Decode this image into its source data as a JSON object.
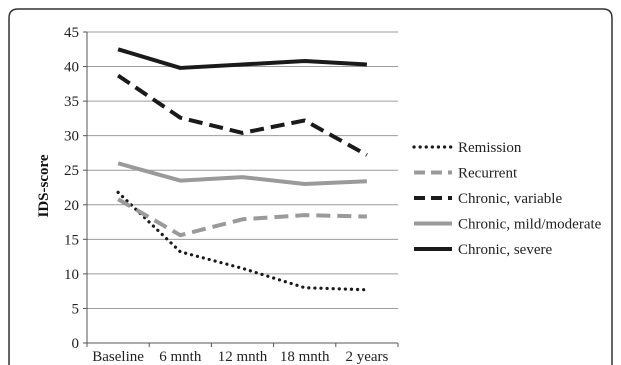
{
  "chart_data": {
    "type": "line",
    "title": "",
    "xlabel": "",
    "ylabel": "IDS-score",
    "categories": [
      "Baseline",
      "6 mnth",
      "12 mnth",
      "18 mnth",
      "2 years"
    ],
    "ylim": [
      0,
      45
    ],
    "yticks": [
      0,
      5,
      10,
      15,
      20,
      25,
      30,
      35,
      40,
      45
    ],
    "grid": "horizontal",
    "legend_position": "right",
    "series": [
      {
        "name": "Remission",
        "values": [
          21.8,
          13.2,
          10.8,
          8.0,
          7.7
        ],
        "color": "#1a1a1a",
        "style": "dotted"
      },
      {
        "name": "Recurrent",
        "values": [
          20.8,
          15.6,
          17.9,
          18.5,
          18.3
        ],
        "color": "#9a9a9a",
        "style": "dashed"
      },
      {
        "name": "Chronic, variable",
        "values": [
          38.7,
          32.6,
          30.4,
          32.2,
          27.2
        ],
        "color": "#1a1a1a",
        "style": "dashed"
      },
      {
        "name": "Chronic, mild/moderate",
        "values": [
          26.0,
          23.5,
          24.0,
          23.0,
          23.4
        ],
        "color": "#9a9a9a",
        "style": "solid"
      },
      {
        "name": "Chronic, severe",
        "values": [
          42.5,
          39.8,
          40.3,
          40.8,
          40.3
        ],
        "color": "#1a1a1a",
        "style": "solid"
      }
    ]
  }
}
